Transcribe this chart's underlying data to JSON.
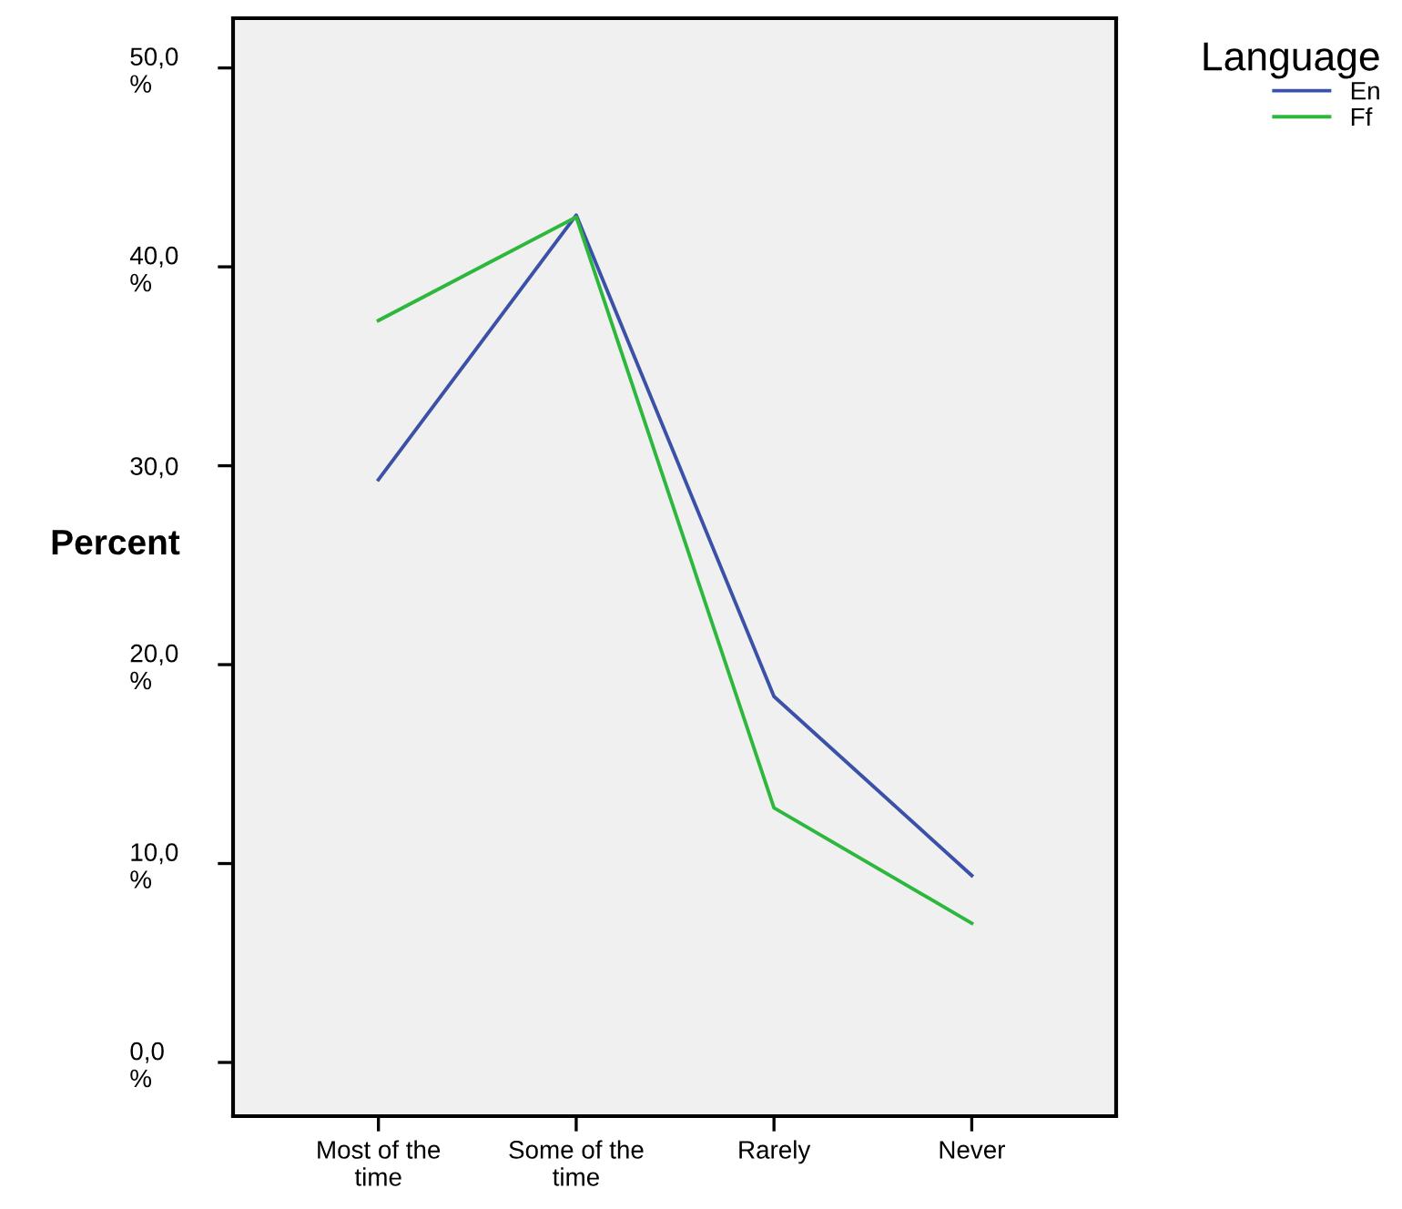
{
  "chart_data": {
    "type": "line",
    "ylabel": "Percent",
    "legend_title": "Language",
    "legend": "top right",
    "categories": [
      "Most of the\ntime",
      "Some of the\ntime",
      "Rarely",
      "Never"
    ],
    "series": [
      {
        "name": "En",
        "color": "#3b51a8",
        "values": [
          29.3,
          42.6,
          18.4,
          9.4
        ]
      },
      {
        "name": "Ff",
        "color": "#2db83d",
        "values": [
          37.3,
          42.5,
          12.8,
          7.0
        ]
      }
    ],
    "ylim": [
      -2.7,
      52.5
    ],
    "yticks": [
      {
        "value": 0,
        "label": "0,0\n%"
      },
      {
        "value": 10,
        "label": "10,0\n%"
      },
      {
        "value": 20,
        "label": "20,0\n%"
      },
      {
        "value": 30,
        "label": "30,0"
      },
      {
        "value": 40,
        "label": "40,0\n%"
      },
      {
        "value": 50,
        "label": "50,0\n%"
      }
    ],
    "grid": false,
    "marker": "none",
    "line_style": "solid"
  }
}
